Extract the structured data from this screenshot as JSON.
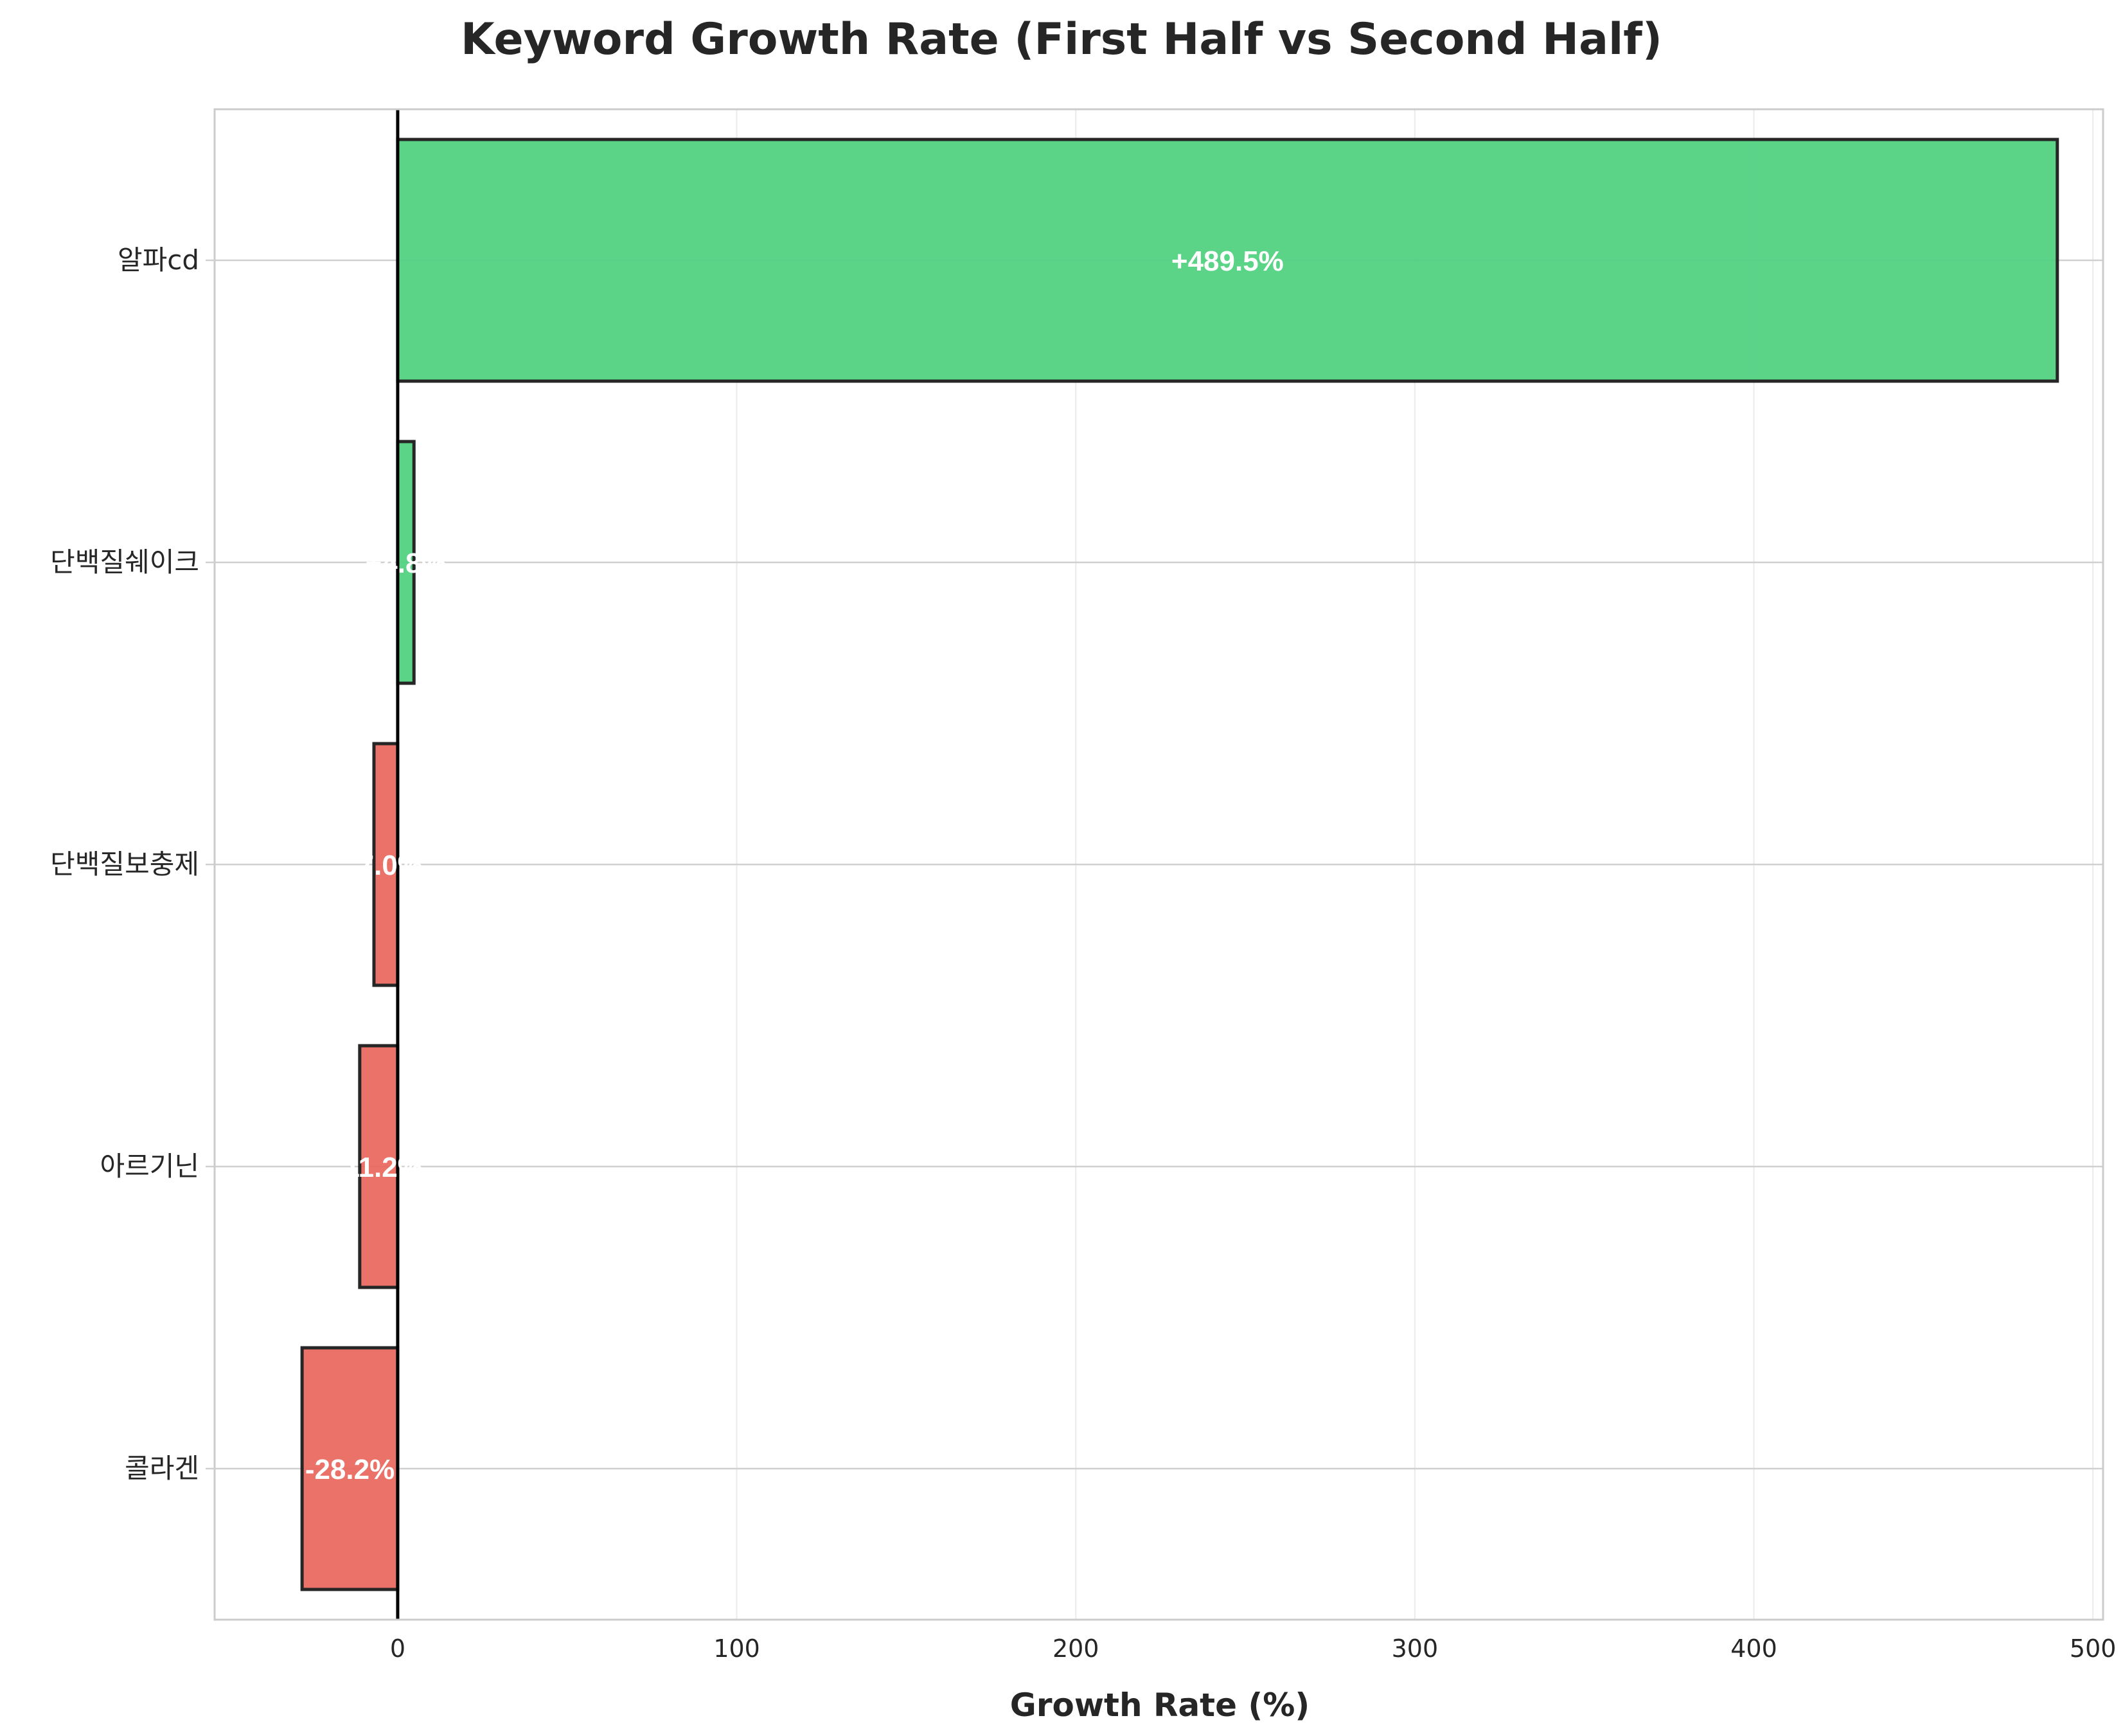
{
  "chart_data": {
    "type": "bar",
    "orientation": "horizontal",
    "title": "Keyword Growth Rate (First Half vs Second Half)",
    "xlabel": "Growth Rate (%)",
    "ylabel": "",
    "categories": [
      "알파cd",
      "단백질쉐이크",
      "단백질보충제",
      "아르기닌",
      "콜라겐"
    ],
    "values": [
      489.5,
      4.8,
      -7.0,
      -11.2,
      -28.2
    ],
    "data_labels": [
      "+489.5%",
      "+4.8%",
      "-7.0%",
      "-11.2%",
      "-28.2%"
    ],
    "xlim": [
      -54,
      503
    ],
    "xticks": [
      0,
      100,
      200,
      300,
      400,
      500
    ],
    "xtick_labels": [
      "0",
      "100",
      "200",
      "300",
      "400",
      "500"
    ],
    "grid": true,
    "colors": {
      "positive": "#4fd17f",
      "negative": "#e9675c",
      "edge": "#262626",
      "zero_line": "#000000",
      "grid": "#e5e5e5",
      "frame": "#cccccc"
    }
  }
}
